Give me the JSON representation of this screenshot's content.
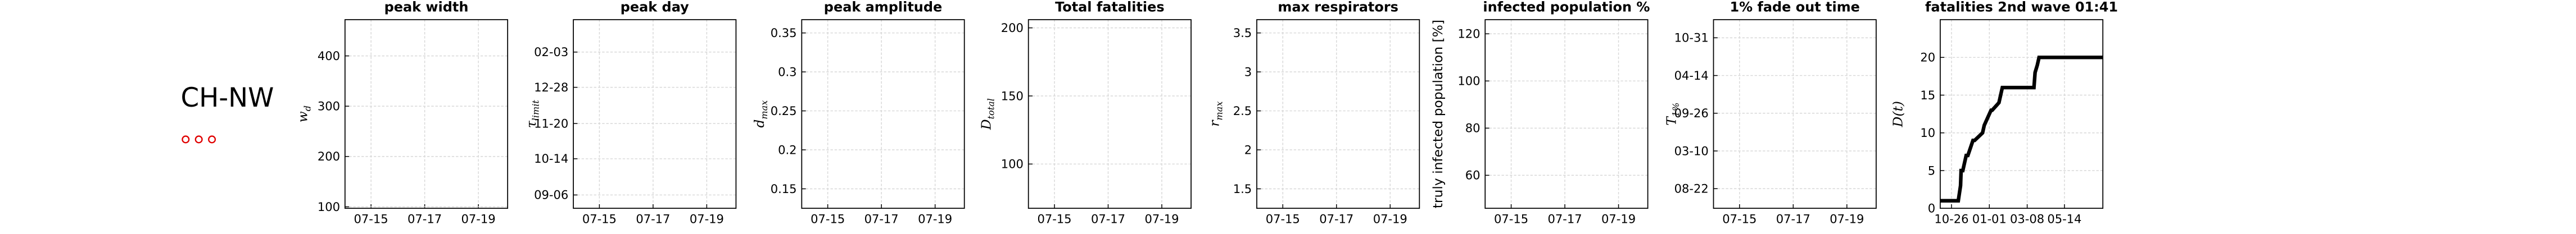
{
  "region_label": "CH-NW",
  "chart_data": [
    {
      "type": "line",
      "title": "peak width",
      "ylabel": {
        "main": "w",
        "sub": "d"
      },
      "xlim": [
        -0.97,
        5.09
      ],
      "xticks": [
        {
          "value": 0,
          "label": "07-15"
        },
        {
          "value": 2,
          "label": "07-17"
        },
        {
          "value": 4,
          "label": "07-19"
        }
      ],
      "ylim": [
        97,
        472
      ],
      "yticks": [
        100,
        200,
        300,
        400
      ],
      "grid": true,
      "series": []
    },
    {
      "type": "line",
      "title": "peak day",
      "ylabel": {
        "main": "τ",
        "sub": "limit"
      },
      "xlim": [
        -0.97,
        5.09
      ],
      "xticks": [
        {
          "value": 0,
          "label": "07-15"
        },
        {
          "value": 2,
          "label": "07-17"
        },
        {
          "value": 4,
          "label": "07-19"
        }
      ],
      "ylim": [
        -14,
        184
      ],
      "yticks": [
        {
          "value": 0,
          "label": "09-06"
        },
        {
          "value": 38,
          "label": "10-14"
        },
        {
          "value": 75,
          "label": "11-20"
        },
        {
          "value": 113,
          "label": "12-28"
        },
        {
          "value": 150,
          "label": "02-03"
        }
      ],
      "grid": true,
      "series": []
    },
    {
      "type": "line",
      "title": "peak amplitude",
      "ylabel": {
        "main": "d",
        "sub": "max"
      },
      "xlim": [
        -0.97,
        5.09
      ],
      "xticks": [
        {
          "value": 0,
          "label": "07-15"
        },
        {
          "value": 2,
          "label": "07-17"
        },
        {
          "value": 4,
          "label": "07-19"
        }
      ],
      "ylim": [
        0.125,
        0.367
      ],
      "yticks": [
        0.15,
        0.2,
        0.25,
        0.3,
        0.35
      ],
      "grid": true,
      "series": []
    },
    {
      "type": "line",
      "title": "Total fatalities",
      "ylabel": {
        "main": "D",
        "sub": "total"
      },
      "xlim": [
        -0.97,
        5.09
      ],
      "xticks": [
        {
          "value": 0,
          "label": "07-15"
        },
        {
          "value": 2,
          "label": "07-17"
        },
        {
          "value": 4,
          "label": "07-19"
        }
      ],
      "ylim": [
        67.5,
        206
      ],
      "yticks": [
        100,
        150,
        200
      ],
      "grid": true,
      "series": []
    },
    {
      "type": "line",
      "title": "max respirators",
      "ylabel": {
        "main": "r",
        "sub": "max"
      },
      "xlim": [
        -0.97,
        5.09
      ],
      "xticks": [
        {
          "value": 0,
          "label": "07-15"
        },
        {
          "value": 2,
          "label": "07-17"
        },
        {
          "value": 4,
          "label": "07-19"
        }
      ],
      "ylim": [
        1.25,
        3.67
      ],
      "yticks": [
        1.5,
        2,
        2.5,
        3,
        3.5
      ],
      "grid": true,
      "series": []
    },
    {
      "type": "line",
      "title": "infected population %",
      "ylabel": {
        "main": "truly infected population [%]"
      },
      "xlim": [
        -0.97,
        5.09
      ],
      "xticks": [
        {
          "value": 0,
          "label": "07-15"
        },
        {
          "value": 2,
          "label": "07-17"
        },
        {
          "value": 4,
          "label": "07-19"
        }
      ],
      "ylim": [
        46,
        126
      ],
      "yticks": [
        60,
        80,
        100,
        120
      ],
      "grid": true,
      "series": []
    },
    {
      "type": "line",
      "title": "1% fade out time",
      "ylabel": {
        "main": "T",
        "sub": "1%"
      },
      "xlim": [
        -0.97,
        5.09
      ],
      "xticks": [
        {
          "value": 0,
          "label": "07-15"
        },
        {
          "value": 2,
          "label": "07-17"
        },
        {
          "value": 4,
          "label": "07-19"
        }
      ],
      "ylim": [
        -104,
        896
      ],
      "yticks": [
        {
          "value": 0,
          "label": "08-22"
        },
        {
          "value": 200,
          "label": "03-10"
        },
        {
          "value": 400,
          "label": "09-26"
        },
        {
          "value": 600,
          "label": "04-14"
        },
        {
          "value": 800,
          "label": "10-31"
        }
      ],
      "grid": true,
      "series": []
    },
    {
      "type": "line",
      "title": "fatalities 2nd wave 01:41",
      "ylabel": {
        "main": "D(t)"
      },
      "xlim": [
        -20,
        268
      ],
      "xticks": [
        {
          "value": 0,
          "label": "10-26"
        },
        {
          "value": 67,
          "label": "01-01"
        },
        {
          "value": 134,
          "label": "03-08"
        },
        {
          "value": 200,
          "label": "05-14"
        }
      ],
      "ylim": [
        0,
        25
      ],
      "yticks": [
        0,
        5,
        10,
        15,
        20
      ],
      "grid": true,
      "series": [
        {
          "color": "#000000",
          "x": [
            -20,
            12,
            14,
            16,
            17,
            20,
            26,
            29,
            38,
            41,
            55,
            58,
            70,
            72,
            84,
            87,
            90,
            146,
            148,
            152,
            155,
            268
          ],
          "values": [
            1,
            1,
            2,
            3,
            5,
            5,
            7,
            7,
            9,
            9,
            10,
            11,
            13,
            13,
            14,
            15,
            16,
            16,
            18,
            19,
            20,
            20
          ]
        }
      ]
    }
  ]
}
